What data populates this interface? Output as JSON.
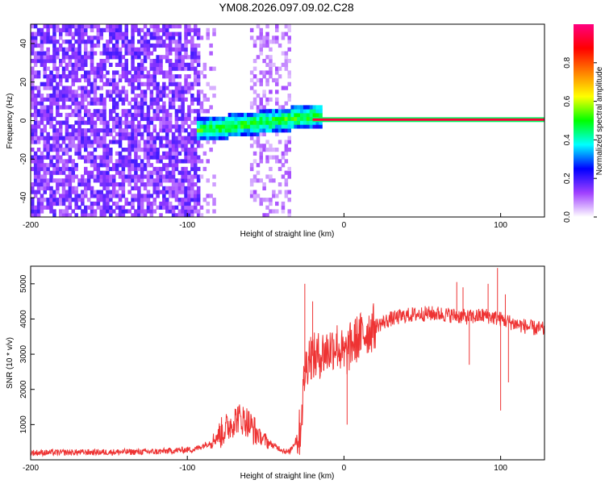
{
  "title": "YM08.2026.097.09.02.C28",
  "chart_data": [
    {
      "type": "heatmap",
      "xlabel": "Height of straight line (km)",
      "ylabel": "Frequency (Hz)",
      "xlim": [
        -200,
        128
      ],
      "ylim": [
        -50,
        50
      ],
      "xticks": [
        -200,
        -100,
        0,
        100
      ],
      "yticks": [
        -40,
        -20,
        0,
        20,
        40
      ],
      "xtick_labels": [
        "-200",
        "-100",
        "0",
        "100"
      ],
      "ytick_labels": [
        "-40",
        "-20",
        "0",
        "20",
        "40"
      ],
      "colorbar": {
        "label": "Normalized spectral amplitude",
        "range": [
          0,
          1
        ],
        "ticks": [
          0.0,
          0.2,
          0.4,
          0.6,
          0.8
        ],
        "tick_labels": [
          "0.0",
          "0.2",
          "0.4",
          "0.6",
          "0.8"
        ],
        "colormap": [
          "#ffffff",
          "#a040ff",
          "#0000ff",
          "#00ffff",
          "#00ff00",
          "#ffff00",
          "#ff8000",
          "#ff0000",
          "#ff0080"
        ]
      },
      "features": {
        "noise_region_x": [
          -200,
          -92
        ],
        "broadband_column_x": [
          -60,
          -35
        ],
        "signal_band_x": [
          -95,
          -15
        ],
        "signal_band_freq_start": -5,
        "signal_band_freq_end": 3,
        "tone_line_x": [
          -20,
          128
        ],
        "tone_line_freq": 0.5
      }
    },
    {
      "type": "line",
      "color": "#ee3333",
      "xlabel": "Height of straight line (km)",
      "ylabel": "SNR (10 * v/v)",
      "xlim": [
        -200,
        128
      ],
      "ylim": [
        0,
        5500
      ],
      "xticks": [
        -200,
        -100,
        0,
        100
      ],
      "yticks": [
        1000,
        2000,
        3000,
        4000,
        5000
      ],
      "xtick_labels": [
        "-200",
        "-100",
        "0",
        "100"
      ],
      "ytick_labels": [
        "1000",
        "2000",
        "3000",
        "4000",
        "5000"
      ],
      "envelope_x": [
        -200,
        -120,
        -95,
        -85,
        -75,
        -68,
        -62,
        -55,
        -45,
        -35,
        -28,
        -25,
        -22,
        -18,
        -15,
        -10,
        -5,
        -2,
        0,
        5,
        10,
        20,
        30,
        40,
        50,
        60,
        70,
        80,
        90,
        100,
        110,
        120,
        128
      ],
      "envelope_y": [
        200,
        230,
        300,
        500,
        900,
        1200,
        1100,
        700,
        400,
        200,
        800,
        2500,
        3000,
        2900,
        3000,
        3100,
        3300,
        3100,
        2900,
        3300,
        3500,
        3800,
        4000,
        4100,
        4150,
        4150,
        4100,
        4050,
        4100,
        4000,
        3850,
        3750,
        3700
      ],
      "spikes": [
        {
          "x": -25,
          "y": 5000
        },
        {
          "x": -20,
          "y": 4500
        },
        {
          "x": 2,
          "y": 1000
        },
        {
          "x": -3,
          "y": 2800
        },
        {
          "x": 72,
          "y": 5050
        },
        {
          "x": 76,
          "y": 4900
        },
        {
          "x": 92,
          "y": 5000
        },
        {
          "x": 98,
          "y": 5450
        },
        {
          "x": 100,
          "y": 1400
        },
        {
          "x": 103,
          "y": 4700
        },
        {
          "x": 105,
          "y": 2200
        },
        {
          "x": 80,
          "y": 2700
        }
      ]
    }
  ]
}
